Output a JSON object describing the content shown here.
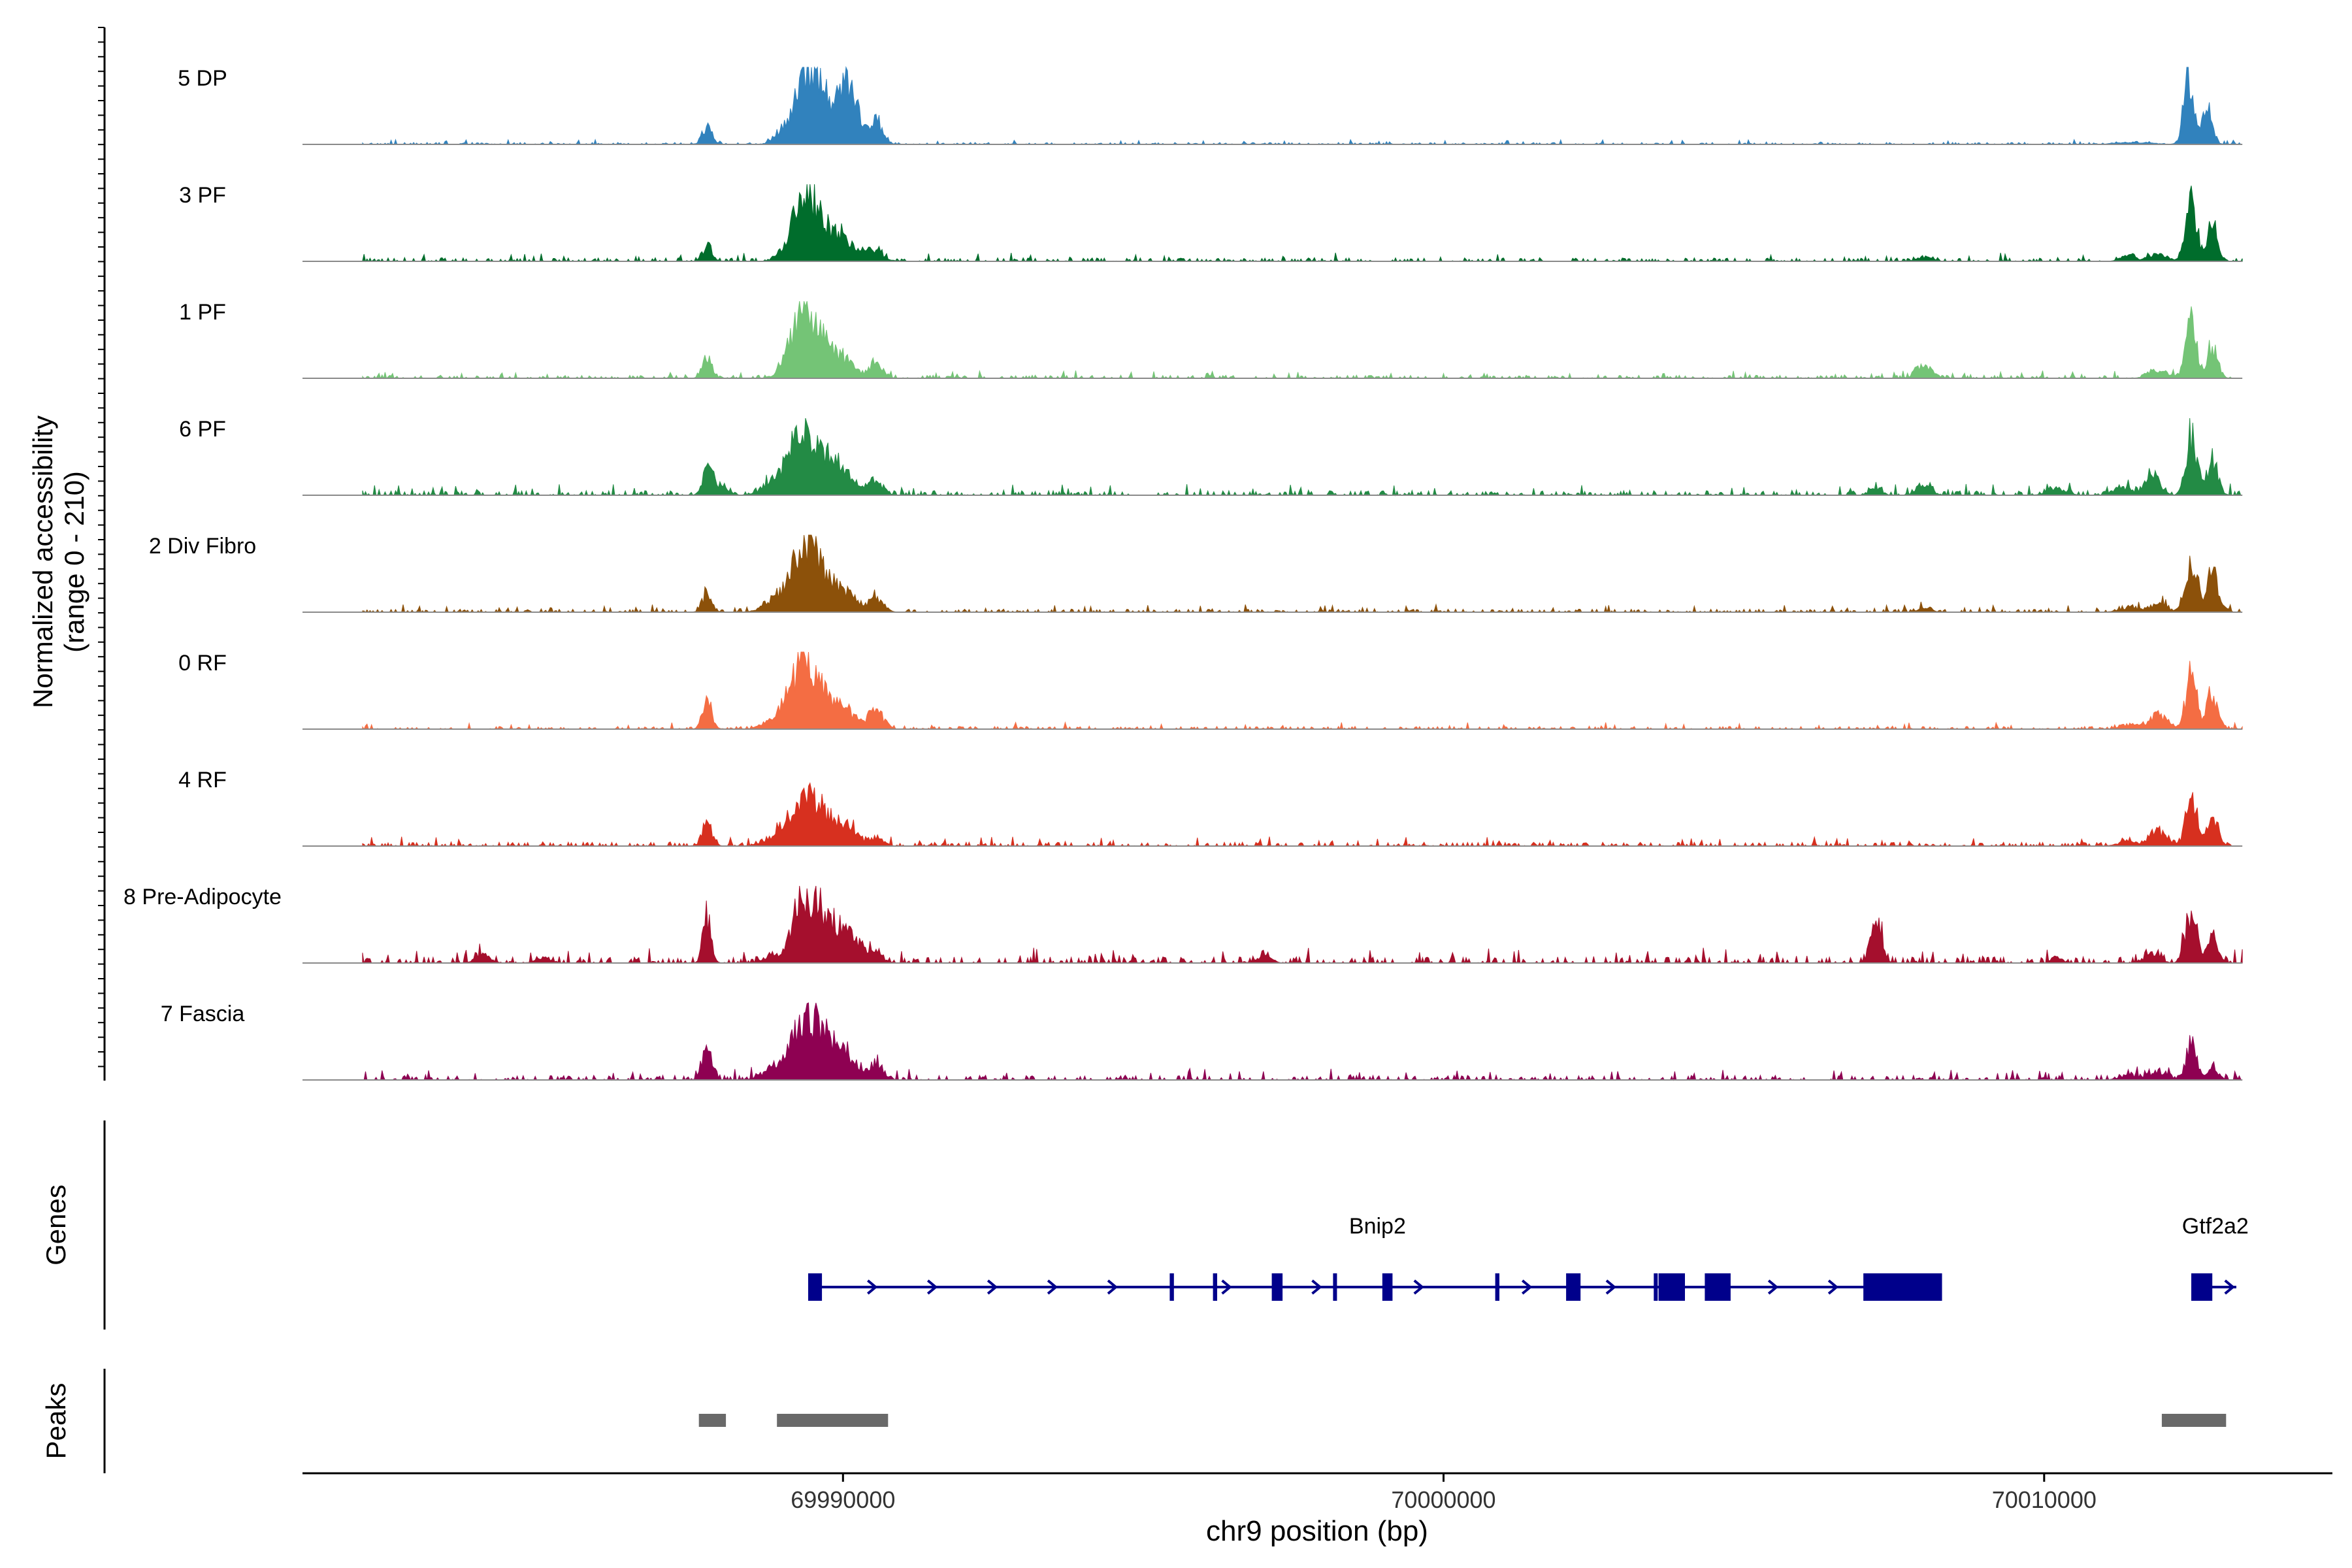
{
  "chart_data": {
    "type": "area",
    "title": "",
    "ylabel_line1": "Normalized accessibility",
    "ylabel_line2": "(range 0 - 210)",
    "xlabel": "chr9 position (bp)",
    "xlim": [
      69981000,
      70014800
    ],
    "y_range": [
      0,
      210
    ],
    "x_ticks": [
      {
        "value": 69990000,
        "label": "69990000"
      },
      {
        "value": 70000000,
        "label": "70000000"
      },
      {
        "value": 70010000,
        "label": "70010000"
      }
    ],
    "track_label": "Genes",
    "peak_track_label": "Peaks",
    "series": [
      {
        "name": "5 DP",
        "color": "#3182BD",
        "peaks": [
          [
            69987740,
            0.28,
            80
          ],
          [
            69989300,
            0.7,
            220
          ],
          [
            69989500,
            0.55,
            160
          ],
          [
            69989950,
            0.62,
            260
          ],
          [
            69990100,
            0.45,
            120
          ],
          [
            69990550,
            0.32,
            110
          ],
          [
            70012400,
            1.0,
            80
          ],
          [
            70012700,
            0.55,
            90
          ],
          [
            70011500,
            0.03,
            300
          ]
        ],
        "noise": 0.025
      },
      {
        "name": "3 PF",
        "color": "#006D2C",
        "peaks": [
          [
            69987740,
            0.22,
            80
          ],
          [
            69989300,
            0.78,
            200
          ],
          [
            69989550,
            0.5,
            180
          ],
          [
            69989950,
            0.35,
            200
          ],
          [
            69990500,
            0.18,
            150
          ],
          [
            70008000,
            0.07,
            120
          ],
          [
            70011400,
            0.08,
            120
          ],
          [
            70011900,
            0.12,
            150
          ],
          [
            70012450,
            0.9,
            90
          ],
          [
            70012800,
            0.55,
            90
          ]
        ],
        "noise": 0.045
      },
      {
        "name": "1 PF",
        "color": "#74C476",
        "peaks": [
          [
            69987740,
            0.32,
            80
          ],
          [
            69989300,
            0.8,
            200
          ],
          [
            69989550,
            0.45,
            200
          ],
          [
            69989950,
            0.3,
            200
          ],
          [
            69990550,
            0.2,
            120
          ],
          [
            70008000,
            0.22,
            120
          ],
          [
            70011900,
            0.12,
            150
          ],
          [
            70012450,
            0.85,
            90
          ],
          [
            70012800,
            0.45,
            90
          ]
        ],
        "noise": 0.04
      },
      {
        "name": "6 PF",
        "color": "#238B45",
        "peaks": [
          [
            69987740,
            0.35,
            80
          ],
          [
            69987950,
            0.15,
            120
          ],
          [
            69988900,
            0.2,
            200
          ],
          [
            69989300,
            0.8,
            200
          ],
          [
            69989600,
            0.45,
            200
          ],
          [
            69990000,
            0.35,
            200
          ],
          [
            69990550,
            0.2,
            120
          ],
          [
            70007200,
            0.1,
            100
          ],
          [
            70008000,
            0.15,
            120
          ],
          [
            70010200,
            0.1,
            150
          ],
          [
            70011300,
            0.12,
            150
          ],
          [
            70011800,
            0.3,
            120
          ],
          [
            70012450,
            0.9,
            90
          ],
          [
            70012800,
            0.55,
            90
          ]
        ],
        "noise": 0.06
      },
      {
        "name": "2 Div Fibro",
        "color": "#8C510A",
        "peaks": [
          [
            69987740,
            0.28,
            80
          ],
          [
            69988900,
            0.2,
            200
          ],
          [
            69989350,
            0.9,
            200
          ],
          [
            69989600,
            0.35,
            200
          ],
          [
            69990000,
            0.3,
            200
          ],
          [
            69990550,
            0.2,
            120
          ],
          [
            70008000,
            0.06,
            120
          ],
          [
            70011400,
            0.07,
            150
          ],
          [
            70011900,
            0.12,
            150
          ],
          [
            70012450,
            0.85,
            90
          ],
          [
            70012800,
            0.6,
            90
          ]
        ],
        "noise": 0.04
      },
      {
        "name": "0 RF",
        "color": "#F46D43",
        "peaks": [
          [
            69987740,
            0.4,
            80
          ],
          [
            69988900,
            0.15,
            200
          ],
          [
            69989300,
            0.85,
            200
          ],
          [
            69989600,
            0.4,
            200
          ],
          [
            69990000,
            0.3,
            200
          ],
          [
            69990550,
            0.28,
            120
          ],
          [
            70011400,
            0.07,
            150
          ],
          [
            70011900,
            0.22,
            150
          ],
          [
            70012450,
            0.8,
            90
          ],
          [
            70012800,
            0.55,
            90
          ]
        ],
        "noise": 0.035
      },
      {
        "name": "4 RF",
        "color": "#D7301F",
        "peaks": [
          [
            69987740,
            0.35,
            80
          ],
          [
            69988900,
            0.15,
            200
          ],
          [
            69989300,
            0.55,
            200
          ],
          [
            69989600,
            0.4,
            200
          ],
          [
            69990000,
            0.3,
            200
          ],
          [
            69990550,
            0.12,
            120
          ],
          [
            70011400,
            0.07,
            150
          ],
          [
            70011900,
            0.22,
            150
          ],
          [
            70012450,
            0.75,
            90
          ],
          [
            70012800,
            0.45,
            90
          ]
        ],
        "noise": 0.05
      },
      {
        "name": "8 Pre-Adipocyte",
        "color": "#A50F2D",
        "peaks": [
          [
            69987740,
            0.65,
            70
          ],
          [
            69988800,
            0.1,
            120
          ],
          [
            69989350,
            1.0,
            180
          ],
          [
            69989700,
            0.5,
            200
          ],
          [
            69990100,
            0.4,
            200
          ],
          [
            69990550,
            0.12,
            120
          ],
          [
            69984000,
            0.12,
            120
          ],
          [
            69985000,
            0.08,
            120
          ],
          [
            69997000,
            0.1,
            120
          ],
          [
            70007200,
            0.6,
            90
          ],
          [
            70010200,
            0.1,
            80
          ],
          [
            70011800,
            0.15,
            120
          ],
          [
            70012450,
            0.8,
            90
          ],
          [
            70012800,
            0.4,
            90
          ]
        ],
        "noise": 0.08
      },
      {
        "name": "7 Fascia",
        "color": "#8E0152",
        "peaks": [
          [
            69987740,
            0.45,
            80
          ],
          [
            69988900,
            0.2,
            200
          ],
          [
            69989350,
            0.8,
            200
          ],
          [
            69989700,
            0.45,
            200
          ],
          [
            69990000,
            0.35,
            200
          ],
          [
            69990550,
            0.25,
            120
          ],
          [
            70011400,
            0.07,
            150
          ],
          [
            70011900,
            0.12,
            150
          ],
          [
            70012450,
            0.55,
            90
          ],
          [
            70012800,
            0.2,
            90
          ]
        ],
        "noise": 0.06
      }
    ],
    "genes": [
      {
        "name": "Bnip2",
        "color": "#00008B",
        "start": 69989420,
        "end": 70008300,
        "exons": [
          [
            69989420,
            69989650
          ],
          [
            69995440,
            69995510
          ],
          [
            69996160,
            69996230
          ],
          [
            69997140,
            69997320
          ],
          [
            69998160,
            69998220
          ],
          [
            69998980,
            69999150
          ],
          [
            70000860,
            70000930
          ],
          [
            70002040,
            70002280
          ],
          [
            70003500,
            70003560
          ],
          [
            70003580,
            70004020
          ],
          [
            70004350,
            70004780
          ],
          [
            70006990,
            70008300
          ]
        ],
        "arrows": [
          69990500,
          69991500,
          69992500,
          69993500,
          69994500,
          69996400,
          69997900,
          69999600,
          70001400,
          70002800,
          70005500,
          70006500
        ],
        "label_x": 69998900
      },
      {
        "name": "Gtf2a2",
        "color": "#00008B",
        "start": 70012450,
        "end": 70013200,
        "exons": [
          [
            70012450,
            70012800
          ]
        ],
        "arrows": [
          70013100
        ],
        "label_x": 70012850
      }
    ],
    "peak_regions": [
      [
        69987600,
        69988050
      ],
      [
        69988900,
        69990750
      ],
      [
        70011960,
        70013030
      ]
    ]
  }
}
